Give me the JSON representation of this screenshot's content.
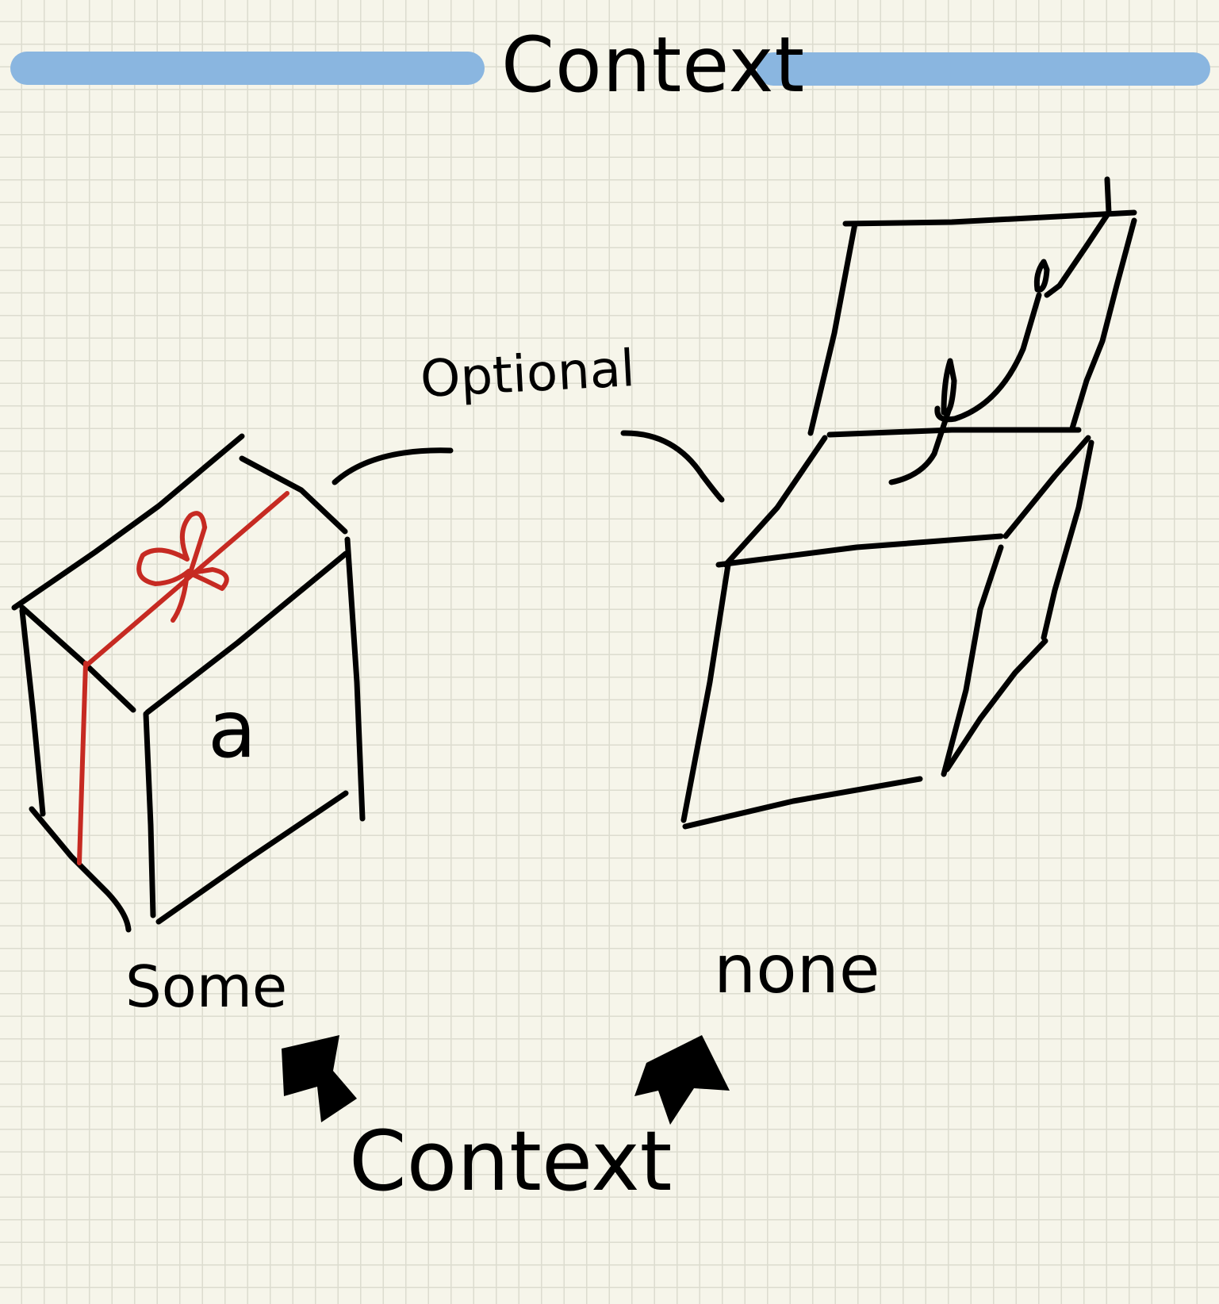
{
  "header": {
    "title": "Context",
    "bar_color": "#8ab6e0"
  },
  "diagram": {
    "optional_label": "Optional",
    "some_box": {
      "label": "Some",
      "content_label": "a",
      "ribbon_color": "#c62a22"
    },
    "none_box": {
      "label": "none"
    },
    "context_label": "Context",
    "icons": [
      "gift-box-icon",
      "open-empty-box-icon",
      "arrow-up-left-icon",
      "arrow-up-right-icon"
    ]
  }
}
